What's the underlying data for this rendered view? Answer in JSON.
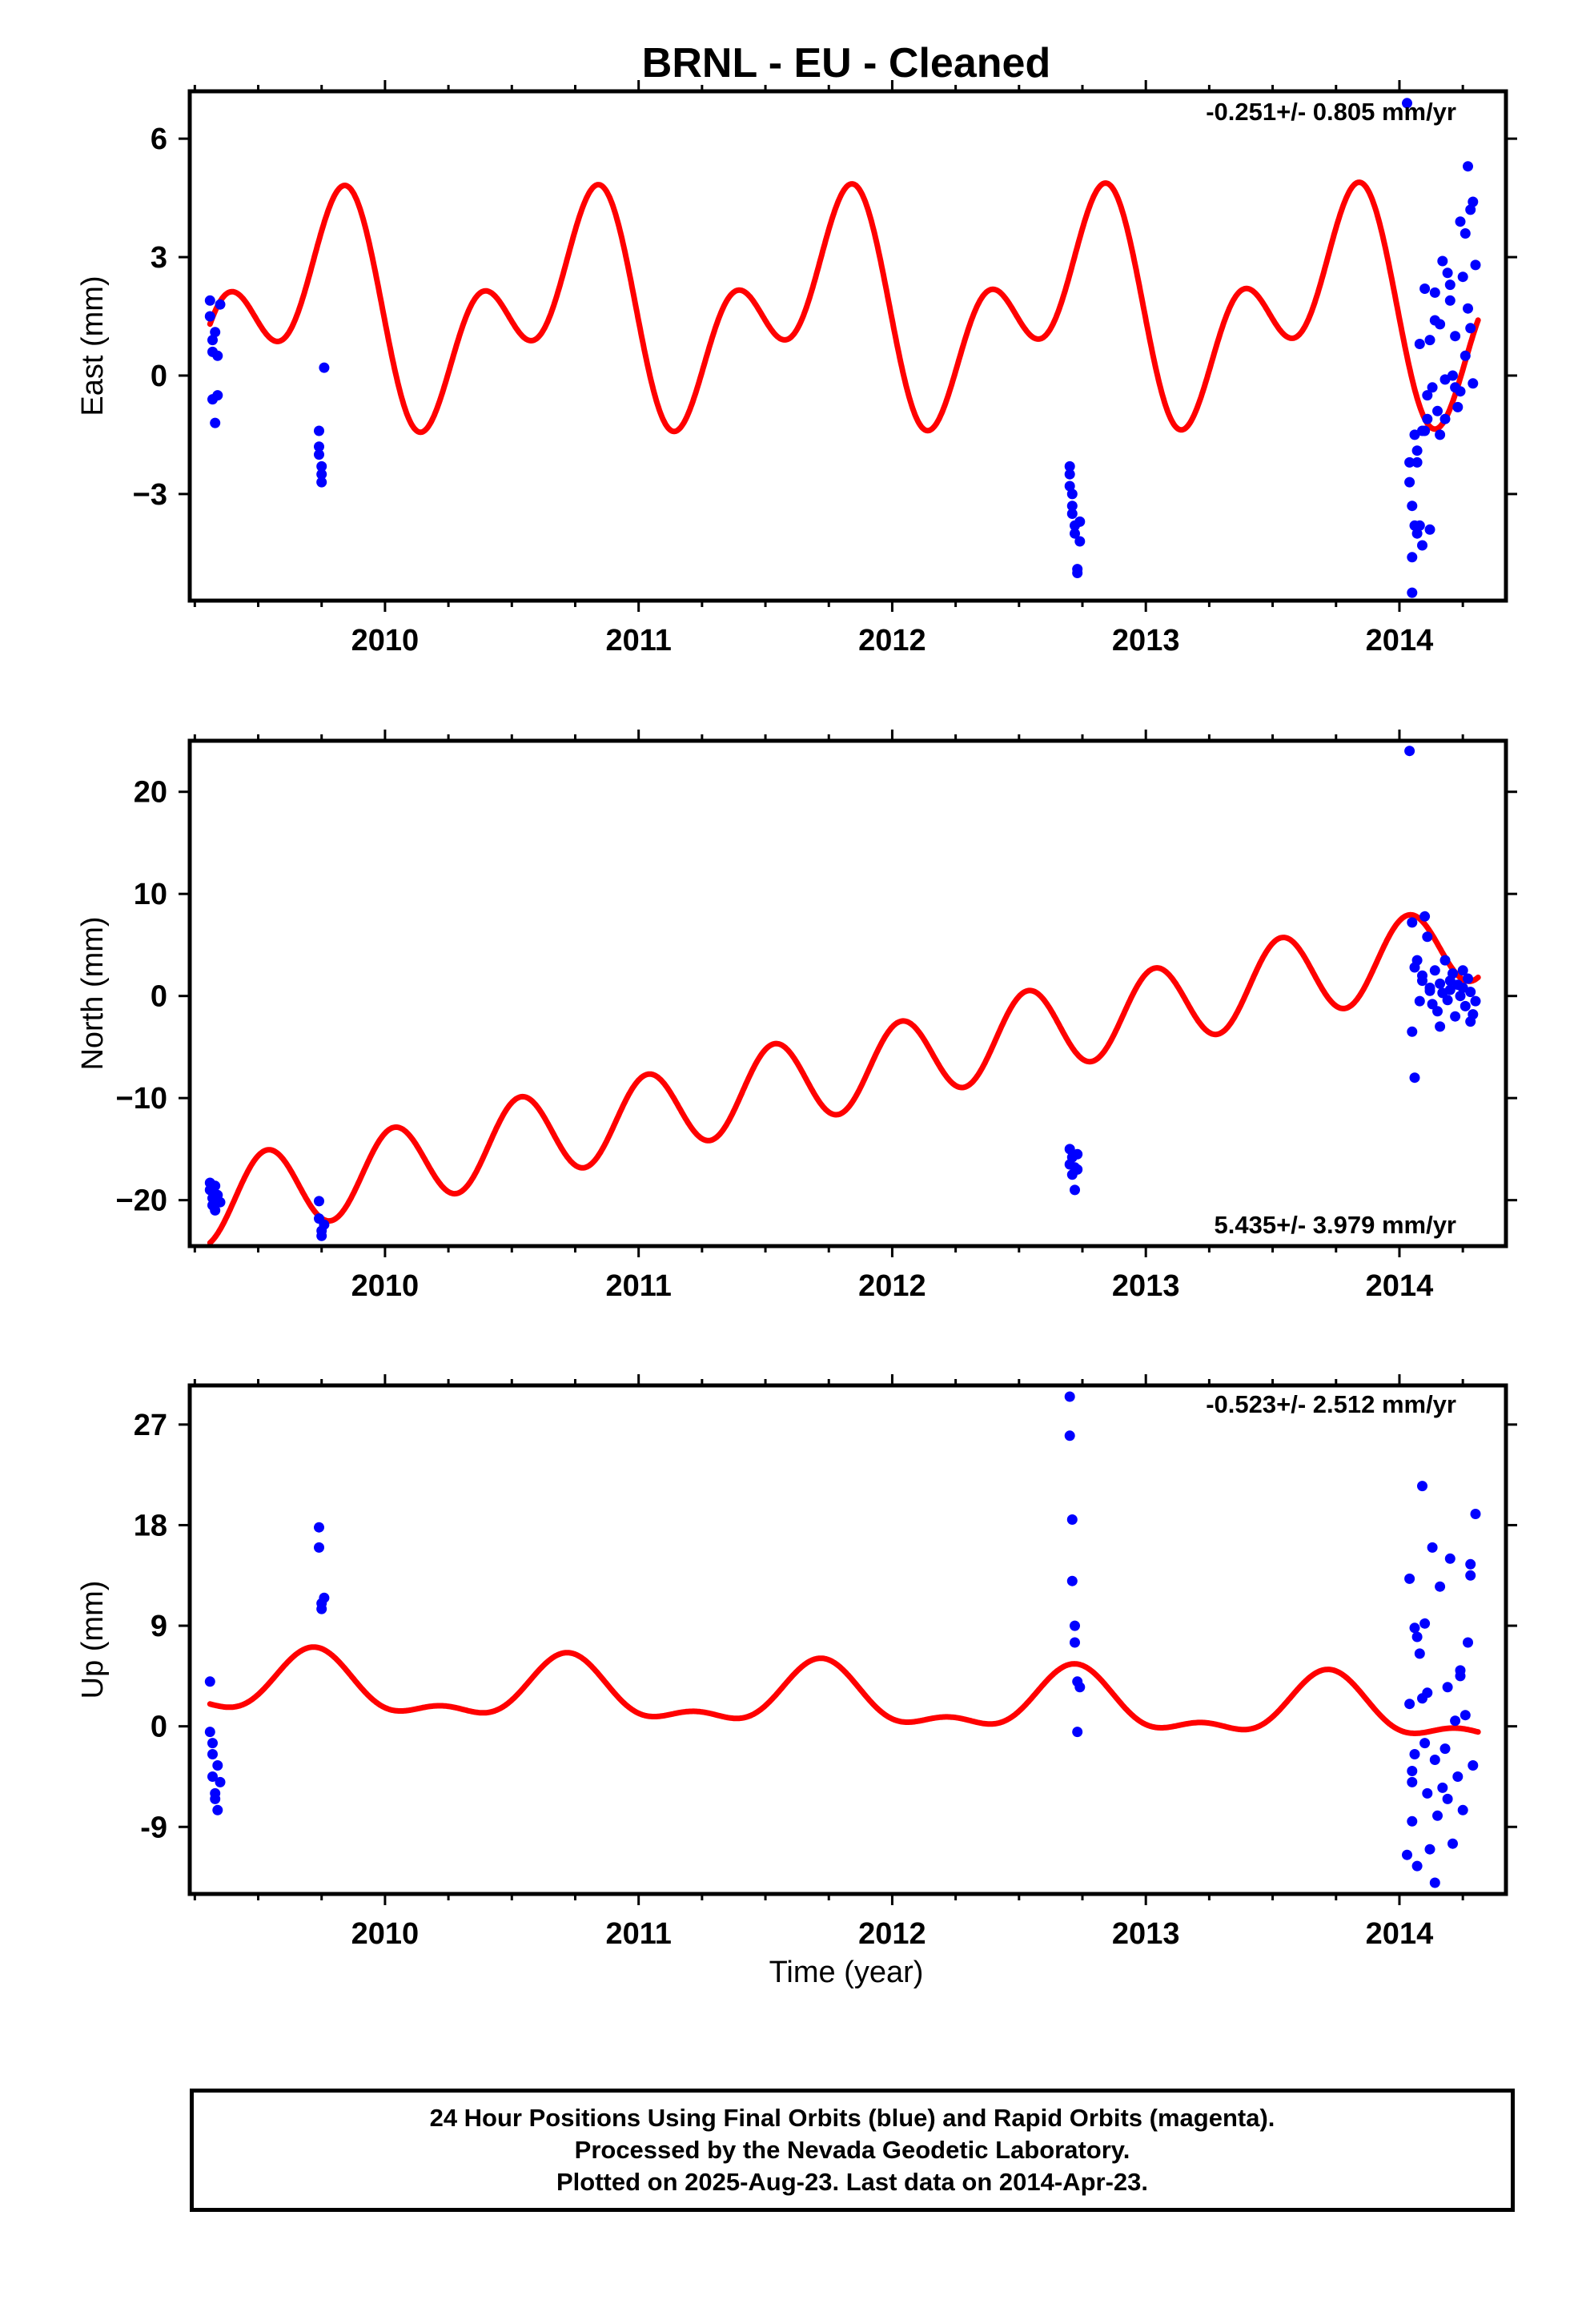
{
  "title": "BRNL  - EU - Cleaned",
  "colors": {
    "data_points": "#0000ff",
    "fit_line": "#ff0000",
    "frame": "#000000"
  },
  "xlabel": "Time (year)",
  "footer": {
    "line1": "24 Hour Positions Using Final Orbits (blue) and Rapid Orbits (magenta).",
    "line2": "Processed by the Nevada Geodetic Laboratory.",
    "line3": "Plotted on 2025-Aug-23. Last data on 2014-Apr-23."
  },
  "chart_data": [
    {
      "type": "scatter",
      "ylabel": "East (mm)",
      "rate_label": "-0.251+/- 0.805 mm/yr",
      "xlim": [
        2009.23,
        2014.42
      ],
      "ylim": [
        -5.7,
        7.2
      ],
      "xticks": [
        2010,
        2011,
        2012,
        2013,
        2014
      ],
      "yticks": [
        -3,
        0,
        3,
        6
      ],
      "yticklabels": [
        "−3",
        "0",
        "3",
        "6"
      ],
      "series": [
        {
          "x": [
            2009.31,
            2009.31,
            2009.32,
            2009.32,
            2009.32,
            2009.33,
            2009.33,
            2009.34,
            2009.34,
            2009.35,
            2009.74,
            2009.74,
            2009.74,
            2009.75,
            2009.75,
            2009.75,
            2009.76,
            2012.7,
            2012.7,
            2012.7,
            2012.71,
            2012.71,
            2012.71,
            2012.72,
            2012.72,
            2012.73,
            2012.73,
            2012.74,
            2012.74,
            2014.03,
            2014.04,
            2014.04,
            2014.05,
            2014.05,
            2014.06,
            2014.06,
            2014.07,
            2014.07,
            2014.08,
            2014.08,
            2014.09,
            2014.1,
            2014.1,
            2014.11,
            2014.11,
            2014.12,
            2014.13,
            2014.14,
            2014.15,
            2014.16,
            2014.17,
            2014.18,
            2014.19,
            2014.2,
            2014.21,
            2014.22,
            2014.23,
            2014.24,
            2014.25,
            2014.26,
            2014.27,
            2014.28,
            2014.29,
            2014.3,
            2014.05,
            2014.07,
            2014.12,
            2014.16,
            2014.2,
            2014.24,
            2014.27,
            2014.29,
            2014.09,
            2014.14,
            2014.18,
            2014.22,
            2014.26,
            2014.28
          ],
          "y": [
            1.9,
            1.5,
            0.9,
            0.6,
            -0.6,
            1.1,
            -1.2,
            -0.5,
            0.5,
            1.8,
            -1.4,
            -1.8,
            -2.0,
            -2.3,
            -2.5,
            -2.7,
            0.2,
            -2.3,
            -2.5,
            -2.8,
            -3.0,
            -3.3,
            -3.5,
            -3.8,
            -4.0,
            -4.9,
            -5.0,
            -3.7,
            -4.2,
            6.9,
            -2.7,
            -2.2,
            -3.3,
            -4.6,
            -3.8,
            -1.5,
            -1.9,
            -4.0,
            -3.8,
            0.8,
            -4.3,
            -1.4,
            2.2,
            -0.5,
            -1.1,
            0.9,
            -0.3,
            2.1,
            -0.9,
            1.3,
            2.9,
            -0.1,
            2.6,
            1.9,
            0.0,
            1.0,
            -0.8,
            3.9,
            2.5,
            0.5,
            1.7,
            4.2,
            4.4,
            2.8,
            -5.5,
            -2.2,
            -3.9,
            -1.5,
            2.3,
            -0.4,
            5.3,
            -0.2,
            -1.4,
            1.4,
            -1.1,
            -0.3,
            3.6,
            1.2
          ]
        }
      ],
      "fit": "East seasonal model (red)"
    },
    {
      "type": "scatter",
      "ylabel": "North (mm)",
      "rate_label": "5.435+/- 3.979 mm/yr",
      "xlim": [
        2009.23,
        2014.42
      ],
      "ylim": [
        -24.5,
        25.0
      ],
      "xticks": [
        2010,
        2011,
        2012,
        2013,
        2014
      ],
      "yticks": [
        -20,
        -10,
        0,
        10,
        20
      ],
      "yticklabels": [
        "−20",
        "−10",
        "0",
        "10",
        "20"
      ],
      "series": [
        {
          "x": [
            2009.31,
            2009.31,
            2009.32,
            2009.32,
            2009.33,
            2009.33,
            2009.34,
            2009.35,
            2009.74,
            2009.74,
            2009.75,
            2009.75,
            2009.76,
            2012.7,
            2012.7,
            2012.71,
            2012.71,
            2012.72,
            2012.72,
            2012.73,
            2012.73,
            2014.04,
            2014.05,
            2014.05,
            2014.06,
            2014.07,
            2014.08,
            2014.09,
            2014.1,
            2014.11,
            2014.12,
            2014.13,
            2014.14,
            2014.15,
            2014.16,
            2014.17,
            2014.18,
            2014.19,
            2014.2,
            2014.21,
            2014.22,
            2014.23,
            2014.24,
            2014.25,
            2014.26,
            2014.27,
            2014.28,
            2014.29,
            2014.3,
            2014.06,
            2014.09,
            2014.12,
            2014.16,
            2014.2,
            2014.25,
            2014.28
          ],
          "y": [
            -18.3,
            -19.0,
            -19.8,
            -20.5,
            -18.6,
            -21.0,
            -19.5,
            -20.2,
            -20.1,
            -21.8,
            -23.0,
            -23.5,
            -22.4,
            -15.0,
            -16.5,
            -17.5,
            -15.8,
            -19.0,
            -16.8,
            -15.5,
            -17.0,
            24.0,
            7.2,
            -3.5,
            2.8,
            3.5,
            -0.5,
            1.5,
            7.8,
            5.8,
            0.8,
            -0.8,
            2.5,
            -1.5,
            1.2,
            0.3,
            3.5,
            -0.4,
            0.6,
            2.2,
            -2.0,
            1.1,
            0.0,
            2.5,
            -1.0,
            1.7,
            0.4,
            -1.8,
            -0.5,
            -8.0,
            2.0,
            0.5,
            -3.0,
            1.5,
            0.8,
            -2.5
          ]
        }
      ],
      "fit": "North trend + seasonal model (red)"
    },
    {
      "type": "scatter",
      "ylabel": "Up (mm)",
      "rate_label": "-0.523+/- 2.512 mm/yr",
      "xlim": [
        2009.23,
        2014.42
      ],
      "ylim": [
        -15.0,
        30.5
      ],
      "xticks": [
        2010,
        2011,
        2012,
        2013,
        2014
      ],
      "yticks": [
        -9,
        0,
        9,
        18,
        27
      ],
      "yticklabels": [
        "-9",
        "0",
        "9",
        "18",
        "27"
      ],
      "series": [
        {
          "x": [
            2009.31,
            2009.31,
            2009.32,
            2009.32,
            2009.32,
            2009.33,
            2009.33,
            2009.34,
            2009.34,
            2009.35,
            2009.74,
            2009.74,
            2009.75,
            2009.75,
            2009.76,
            2012.7,
            2012.7,
            2012.71,
            2012.71,
            2012.72,
            2012.72,
            2012.73,
            2012.73,
            2012.74,
            2014.03,
            2014.04,
            2014.04,
            2014.05,
            2014.05,
            2014.06,
            2014.06,
            2014.07,
            2014.07,
            2014.08,
            2014.09,
            2014.1,
            2014.1,
            2014.11,
            2014.11,
            2014.12,
            2014.13,
            2014.14,
            2014.15,
            2014.16,
            2014.17,
            2014.18,
            2014.19,
            2014.2,
            2014.21,
            2014.22,
            2014.23,
            2014.24,
            2014.25,
            2014.26,
            2014.27,
            2014.28,
            2014.29,
            2014.3,
            2014.05,
            2014.09,
            2014.14,
            2014.19,
            2014.24,
            2014.28
          ],
          "y": [
            4.0,
            -0.5,
            -1.5,
            -2.5,
            -4.5,
            -6.0,
            -6.5,
            -3.5,
            -7.5,
            -5.0,
            17.8,
            16.0,
            11.0,
            10.5,
            11.5,
            29.5,
            26.0,
            18.5,
            13.0,
            9.0,
            7.5,
            4.0,
            -0.5,
            3.5,
            -11.5,
            2.0,
            13.2,
            -4.0,
            -8.5,
            8.8,
            -2.5,
            -12.5,
            8.0,
            6.5,
            21.5,
            9.2,
            -1.5,
            3.0,
            -6.0,
            -11.0,
            16.0,
            -3.0,
            -8.0,
            12.5,
            -5.5,
            -2.0,
            3.5,
            15.0,
            -10.5,
            0.5,
            -4.5,
            5.0,
            -7.5,
            1.0,
            7.5,
            14.5,
            -3.5,
            19.0,
            -5.0,
            2.5,
            -14.0,
            -6.5,
            4.5,
            13.5
          ]
        }
      ],
      "fit": "Up seasonal model (red)"
    }
  ]
}
